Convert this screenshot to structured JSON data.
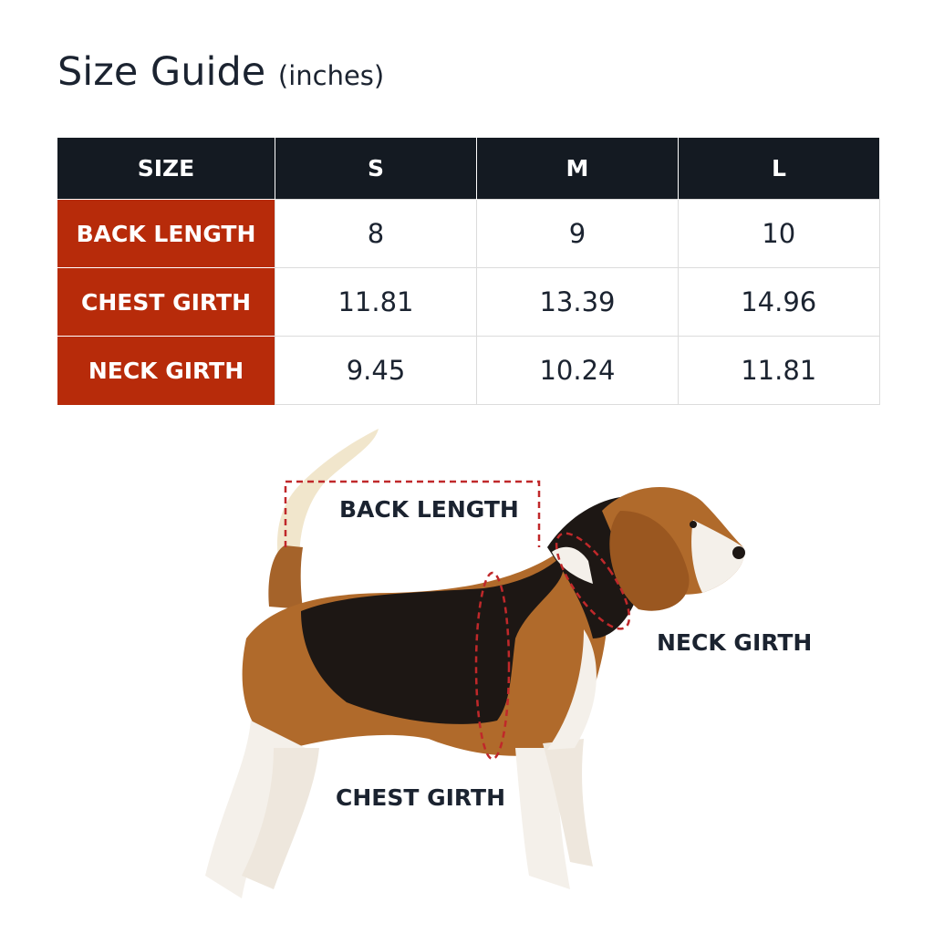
{
  "title": {
    "main": "Size Guide",
    "unit": "(inches)"
  },
  "table": {
    "headers": [
      "SIZE",
      "S",
      "M",
      "L"
    ],
    "rows": [
      {
        "label": "BACK LENGTH",
        "values": [
          "8",
          "9",
          "10"
        ]
      },
      {
        "label": "CHEST GIRTH",
        "values": [
          "11.81",
          "13.39",
          "14.96"
        ]
      },
      {
        "label": "NECK GIRTH",
        "values": [
          "9.45",
          "10.24",
          "11.81"
        ]
      }
    ]
  },
  "diagram": {
    "labels": {
      "back": "BACK LENGTH",
      "neck": "NECK GIRTH",
      "chest": "CHEST GIRTH"
    },
    "colors": {
      "header": "#141a22",
      "row_header": "#b72b0a",
      "guide_line": "#c0282a"
    }
  }
}
